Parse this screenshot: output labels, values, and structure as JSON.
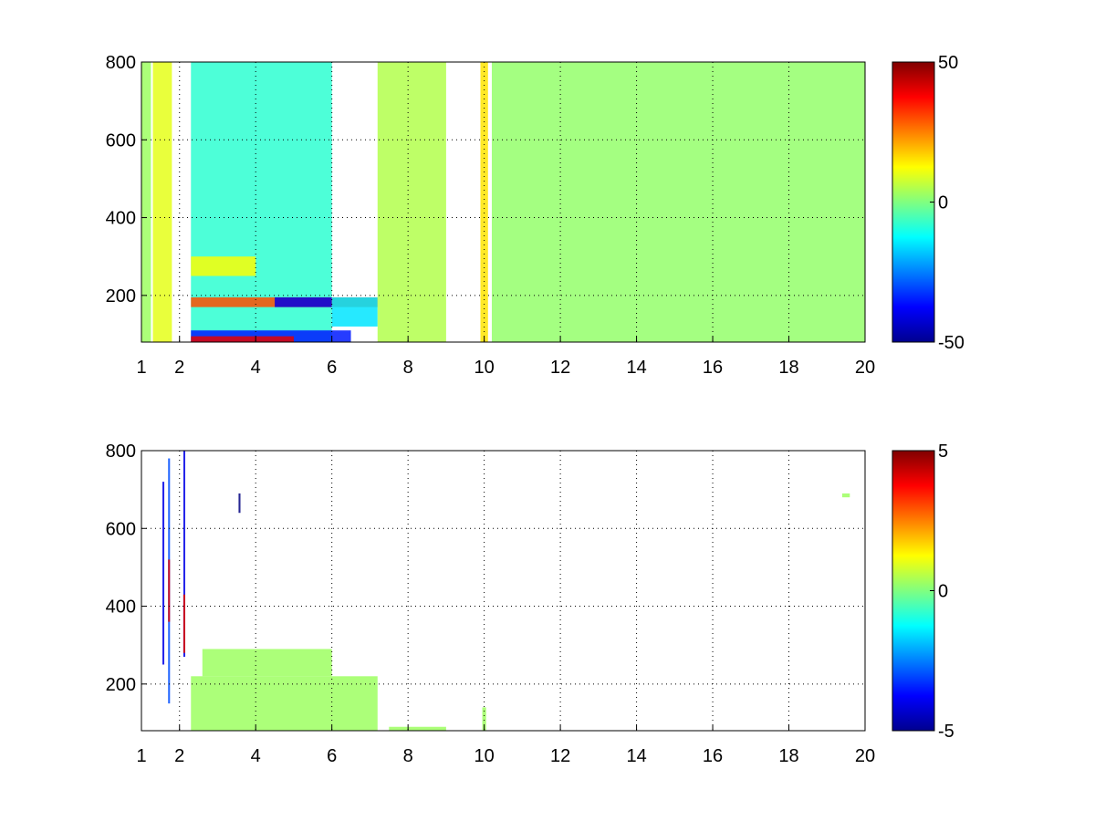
{
  "chart_data": [
    {
      "type": "heatmap",
      "title": "",
      "xlabel": "",
      "ylabel": "",
      "xlim": [
        1,
        20
      ],
      "ylim": [
        80,
        800
      ],
      "xticks": [
        "1",
        "2",
        "4",
        "6",
        "8",
        "10",
        "12",
        "14",
        "16",
        "18",
        "20"
      ],
      "yticks": [
        "200",
        "400",
        "600",
        "800"
      ],
      "grid": true,
      "colormap": "jet",
      "clim": [
        -50,
        50
      ],
      "colorbar_ticks": [
        "50",
        "0",
        "-50"
      ],
      "cells": [
        {
          "x": [
            1.0,
            1.25
          ],
          "y": [
            80,
            800
          ],
          "v": 3
        },
        {
          "x": [
            1.3,
            1.8
          ],
          "y": [
            80,
            800
          ],
          "v": 10
        },
        {
          "x": [
            2.3,
            6.0
          ],
          "y": [
            80,
            800
          ],
          "v": -8
        },
        {
          "x": [
            2.3,
            4.0
          ],
          "y": [
            250,
            300
          ],
          "v": 12
        },
        {
          "x": [
            2.3,
            7.2
          ],
          "y": [
            170,
            195
          ],
          "v": 30
        },
        {
          "x": [
            4.5,
            6.0
          ],
          "y": [
            170,
            195
          ],
          "v": -40
        },
        {
          "x": [
            6.0,
            7.2
          ],
          "y": [
            120,
            195
          ],
          "v": -15
        },
        {
          "x": [
            2.3,
            6.5
          ],
          "y": [
            80,
            110
          ],
          "v": -35
        },
        {
          "x": [
            2.3,
            5.0
          ],
          "y": [
            80,
            95
          ],
          "v": 40
        },
        {
          "x": [
            7.2,
            9.0
          ],
          "y": [
            80,
            800
          ],
          "v": 5
        },
        {
          "x": [
            9.9,
            10.1
          ],
          "y": [
            80,
            800
          ],
          "v": 15
        },
        {
          "x": [
            10.2,
            20.0
          ],
          "y": [
            80,
            800
          ],
          "v": 2
        }
      ]
    },
    {
      "type": "heatmap",
      "title": "",
      "xlabel": "",
      "ylabel": "",
      "xlim": [
        1,
        20
      ],
      "ylim": [
        80,
        800
      ],
      "xticks": [
        "1",
        "2",
        "4",
        "6",
        "8",
        "10",
        "12",
        "14",
        "16",
        "18",
        "20"
      ],
      "yticks": [
        "200",
        "400",
        "600",
        "800"
      ],
      "grid": true,
      "colormap": "jet",
      "clim": [
        -5,
        5
      ],
      "colorbar_ticks": [
        "5",
        "0",
        "-5"
      ],
      "cells": [
        {
          "x": [
            1.55,
            1.6
          ],
          "y": [
            250,
            720
          ],
          "v": -4
        },
        {
          "x": [
            1.7,
            1.75
          ],
          "y": [
            150,
            780
          ],
          "v": -3
        },
        {
          "x": [
            1.7,
            1.75
          ],
          "y": [
            360,
            520
          ],
          "v": 4
        },
        {
          "x": [
            2.1,
            2.15
          ],
          "y": [
            270,
            800
          ],
          "v": -4
        },
        {
          "x": [
            2.1,
            2.15
          ],
          "y": [
            280,
            430
          ],
          "v": 4
        },
        {
          "x": [
            2.3,
            7.2
          ],
          "y": [
            80,
            220
          ],
          "v": 0.3
        },
        {
          "x": [
            2.6,
            6.0
          ],
          "y": [
            220,
            290
          ],
          "v": 0.3
        },
        {
          "x": [
            7.5,
            9.0
          ],
          "y": [
            80,
            90
          ],
          "v": 0.3
        },
        {
          "x": [
            9.95,
            10.05
          ],
          "y": [
            80,
            140
          ],
          "v": 0.3
        },
        {
          "x": [
            3.55,
            3.6
          ],
          "y": [
            640,
            690
          ],
          "v": -5
        },
        {
          "x": [
            19.4,
            19.6
          ],
          "y": [
            680,
            690
          ],
          "v": 0.3
        }
      ]
    }
  ]
}
